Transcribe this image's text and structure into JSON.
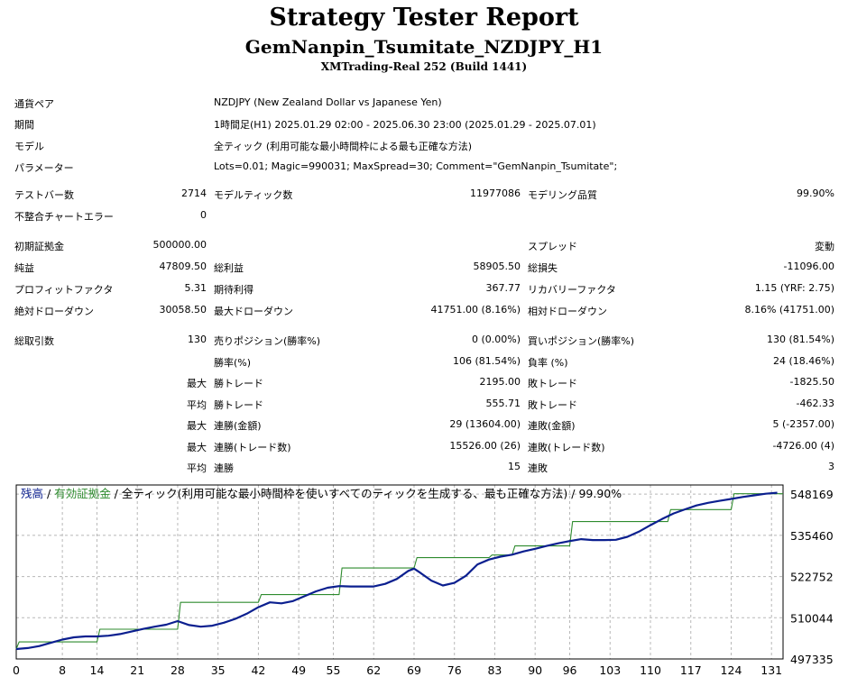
{
  "header": {
    "title": "Strategy Tester Report",
    "subtitle": "GemNanpin_Tsumitate_NZDJPY_H1",
    "build": "XMTrading-Real 252 (Build 1441)"
  },
  "info": {
    "symbol_label": "通貨ペア",
    "symbol_value": "NZDJPY (New Zealand Dollar vs Japanese Yen)",
    "period_label": "期間",
    "period_value": "1時間足(H1) 2025.01.29 02:00 - 2025.06.30 23:00 (2025.01.29 - 2025.07.01)",
    "model_label": "モデル",
    "model_value": "全ティック (利用可能な最小時間枠による最も正確な方法)",
    "params_label": "パラメーター",
    "params_value": "Lots=0.01; Magic=990031; MaxSpread=30; Comment=\"GemNanpin_Tsumitate\";"
  },
  "bars": {
    "bars_label": "テストバー数",
    "bars_value": "2714",
    "ticks_label": "モデルティック数",
    "ticks_value": "11977086",
    "quality_label": "モデリング品質",
    "quality_value": "99.90%",
    "errors_label": "不整合チャートエラー",
    "errors_value": "0"
  },
  "results": {
    "deposit_label": "初期証拠金",
    "deposit_value": "500000.00",
    "spread_label": "スプレッド",
    "spread_value": "変動",
    "net_label": "純益",
    "net_value": "47809.50",
    "gross_profit_label": "総利益",
    "gross_profit_value": "58905.50",
    "gross_loss_label": "総損失",
    "gross_loss_value": "-11096.00",
    "pf_label": "プロフィットファクタ",
    "pf_value": "5.31",
    "expected_label": "期待利得",
    "expected_value": "367.77",
    "recovery_label": "リカバリーファクタ",
    "recovery_value": "1.15 (YRF: 2.75)",
    "abs_dd_label": "絶対ドローダウン",
    "abs_dd_value": "30058.50",
    "max_dd_label": "最大ドローダウン",
    "max_dd_value": "41751.00 (8.16%)",
    "rel_dd_label": "相対ドローダウン",
    "rel_dd_value": "8.16% (41751.00)"
  },
  "trades": {
    "total_label": "総取引数",
    "total_value": "130",
    "short_label": "売りポジション(勝率%)",
    "short_value": "0 (0.00%)",
    "long_label": "買いポジション(勝率%)",
    "long_value": "130 (81.54%)",
    "win_label": "勝率(%)",
    "win_value": "106 (81.54%)",
    "loss_label": "負率 (%)",
    "loss_value": "24 (18.46%)",
    "max_prefix": "最大",
    "avg_prefix": "平均",
    "largest_win_label": "勝トレード",
    "largest_win_value": "2195.00",
    "largest_loss_label": "敗トレード",
    "largest_loss_value": "-1825.50",
    "avg_win_label": "勝トレード",
    "avg_win_value": "555.71",
    "avg_loss_label": "敗トレード",
    "avg_loss_value": "-462.33",
    "max_consec_win_label": "連勝(金額)",
    "max_consec_win_value": "29 (13604.00)",
    "max_consec_loss_label": "連敗(金額)",
    "max_consec_loss_value": "5 (-2357.00)",
    "max_consec_profit_label": "連勝(トレード数)",
    "max_consec_profit_value": "15526.00 (26)",
    "max_consec_lossamt_label": "連敗(トレード数)",
    "max_consec_lossamt_value": "-4726.00 (4)",
    "avg_consec_win_label": "連勝",
    "avg_consec_win_value": "15",
    "avg_consec_loss_label": "連敗",
    "avg_consec_loss_value": "3"
  },
  "chart_data": {
    "type": "line",
    "legend": {
      "balance": "残高",
      "sep1": " / ",
      "equity": "有効証拠金",
      "sep2": " / ",
      "desc": "全ティック(利用可能な最小時間枠を使いすべてのティックを生成する、最も正確な方法)",
      "sep3": " / ",
      "quality": "99.90%"
    },
    "x_ticks": [
      "0",
      "8",
      "14",
      "21",
      "28",
      "35",
      "42",
      "49",
      "55",
      "62",
      "69",
      "76",
      "83",
      "90",
      "96",
      "103",
      "110",
      "117",
      "124",
      "131"
    ],
    "y_ticks": [
      "548169",
      "535460",
      "522752",
      "510044",
      "497335"
    ],
    "xlim": [
      0,
      133
    ],
    "ylim": [
      497335,
      551000
    ],
    "grid": true,
    "colors": {
      "balance": "#0b1f8f",
      "equity": "#2e8b2e",
      "grid": "#b8b8b8"
    },
    "series": [
      {
        "name": "残高",
        "key": "balance",
        "x": [
          0,
          2,
          4,
          6,
          8,
          10,
          12,
          14,
          16,
          18,
          20,
          22,
          24,
          26,
          28,
          30,
          32,
          34,
          36,
          38,
          40,
          42,
          44,
          46,
          48,
          50,
          52,
          54,
          56,
          58,
          60,
          62,
          64,
          66,
          68,
          69,
          70,
          72,
          74,
          76,
          78,
          80,
          82,
          84,
          86,
          88,
          90,
          92,
          94,
          96,
          98,
          100,
          102,
          104,
          106,
          108,
          110,
          112,
          114,
          116,
          118,
          120,
          122,
          124,
          126,
          128,
          130,
          132
        ],
        "y": [
          500400,
          500700,
          501300,
          502300,
          503300,
          504000,
          504300,
          504300,
          504500,
          505000,
          505800,
          506600,
          507300,
          507900,
          509000,
          507800,
          507300,
          507600,
          508500,
          509700,
          511300,
          513300,
          514800,
          514500,
          515200,
          516700,
          518200,
          519300,
          519800,
          519700,
          519700,
          519700,
          520500,
          522000,
          524500,
          525200,
          524000,
          521500,
          520000,
          520800,
          523000,
          526500,
          528000,
          528900,
          529500,
          530500,
          531300,
          532200,
          533000,
          533700,
          534300,
          534000,
          534000,
          534100,
          535000,
          536600,
          538600,
          540500,
          542200,
          543500,
          544700,
          545500,
          546100,
          546700,
          547300,
          547800,
          548300,
          548600
        ]
      },
      {
        "name": "有効証拠金",
        "key": "equity",
        "x": [
          0,
          0.5,
          14,
          14.5,
          28,
          28.5,
          42,
          42.5,
          56,
          56.5,
          69,
          69.5,
          82,
          82.5,
          86,
          86.5,
          96,
          96.5,
          113,
          113.5,
          124,
          124.5,
          133
        ],
        "y": [
          500400,
          502600,
          502600,
          506500,
          506500,
          514800,
          514800,
          517200,
          517200,
          525400,
          525400,
          528600,
          528600,
          529400,
          529400,
          532200,
          532200,
          539700,
          539700,
          543400,
          543400,
          548300,
          548300
        ]
      }
    ]
  }
}
